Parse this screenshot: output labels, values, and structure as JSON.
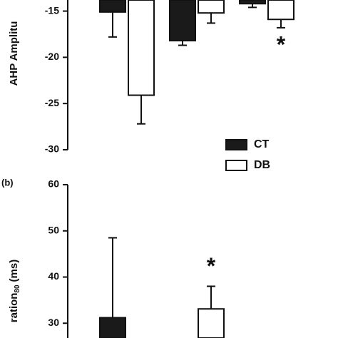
{
  "chart_data": [
    {
      "type": "bar",
      "y_label": "AHP Amplitu",
      "categories": [
        null,
        null,
        null
      ],
      "series": [
        {
          "name": "CT",
          "color": "#1a1a1a",
          "values": [
            -15.1,
            -18.2,
            -14.2
          ],
          "errors": [
            2.7,
            0.5,
            0.4
          ]
        },
        {
          "name": "DB",
          "color": "#ffffff",
          "values": [
            -24.1,
            -15.2,
            -15.9
          ],
          "errors": [
            3.1,
            1.1,
            0.9
          ]
        }
      ],
      "ylim": [
        -30,
        -13.8
      ],
      "yticks": [
        -15,
        -20,
        -25,
        -30
      ],
      "annotations": [
        {
          "text": "*",
          "series": 1,
          "index": 2
        }
      ]
    },
    {
      "type": "bar",
      "panel_label": "(b)",
      "y_label": {
        "text": "ration",
        "sub": "80",
        "suffix": "(ms)"
      },
      "categories": [
        null,
        null,
        null
      ],
      "series": [
        {
          "name": "CT",
          "color": "#1a1a1a",
          "values": [
            31.2,
            null,
            null
          ],
          "errors": [
            17.3,
            null,
            null
          ]
        },
        {
          "name": "DB",
          "color": "#ffffff",
          "values": [
            null,
            33.1,
            null
          ],
          "errors": [
            null,
            4.9,
            null
          ]
        }
      ],
      "ylim": [
        26.8,
        60
      ],
      "yticks": [
        30,
        40,
        50,
        60
      ],
      "annotations": [
        {
          "text": "*",
          "series": 1,
          "index": 1
        }
      ]
    }
  ]
}
